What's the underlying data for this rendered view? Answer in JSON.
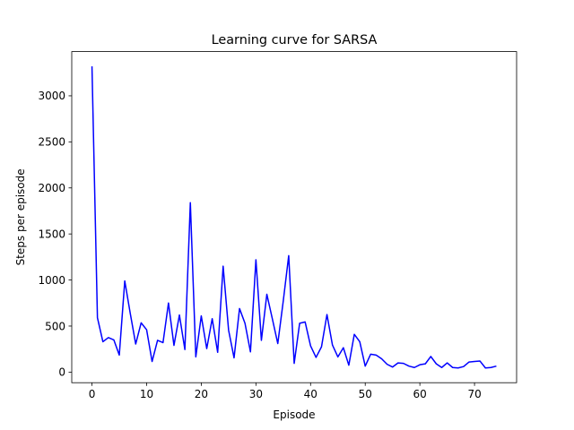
{
  "chart_data": {
    "type": "line",
    "title": "Learning curve for SARSA",
    "xlabel": "Episode",
    "ylabel": "Steps per episode",
    "xlim": [
      -3.7,
      77.7
    ],
    "ylim": [
      -115,
      3480
    ],
    "xticks": [
      0,
      10,
      20,
      30,
      40,
      50,
      60,
      70
    ],
    "yticks": [
      0,
      500,
      1000,
      1500,
      2000,
      2500,
      3000
    ],
    "grid": false,
    "series": [
      {
        "color": "#0000ff",
        "x": [
          0,
          1,
          2,
          3,
          4,
          5,
          6,
          7,
          8,
          9,
          10,
          11,
          12,
          13,
          14,
          15,
          16,
          17,
          18,
          19,
          20,
          21,
          22,
          23,
          24,
          25,
          26,
          27,
          28,
          29,
          30,
          31,
          32,
          33,
          34,
          35,
          36,
          37,
          38,
          39,
          40,
          41,
          42,
          43,
          44,
          45,
          46,
          47,
          48,
          49,
          50,
          51,
          52,
          53,
          54,
          55,
          56,
          57,
          58,
          59,
          60,
          61,
          62,
          63,
          64,
          65,
          66,
          67,
          68,
          69,
          70,
          71,
          72,
          73,
          74
        ],
        "y": [
          3320,
          590,
          330,
          375,
          350,
          185,
          990,
          640,
          305,
          535,
          460,
          115,
          345,
          320,
          750,
          290,
          620,
          245,
          1840,
          165,
          610,
          255,
          580,
          215,
          1150,
          455,
          155,
          690,
          530,
          220,
          1220,
          345,
          845,
          580,
          310,
          770,
          1265,
          95,
          530,
          545,
          285,
          160,
          275,
          625,
          295,
          165,
          265,
          75,
          410,
          330,
          65,
          195,
          185,
          145,
          85,
          55,
          100,
          95,
          65,
          50,
          80,
          90,
          170,
          90,
          50,
          100,
          50,
          45,
          60,
          110,
          115,
          120,
          45,
          50,
          65
        ]
      }
    ]
  }
}
